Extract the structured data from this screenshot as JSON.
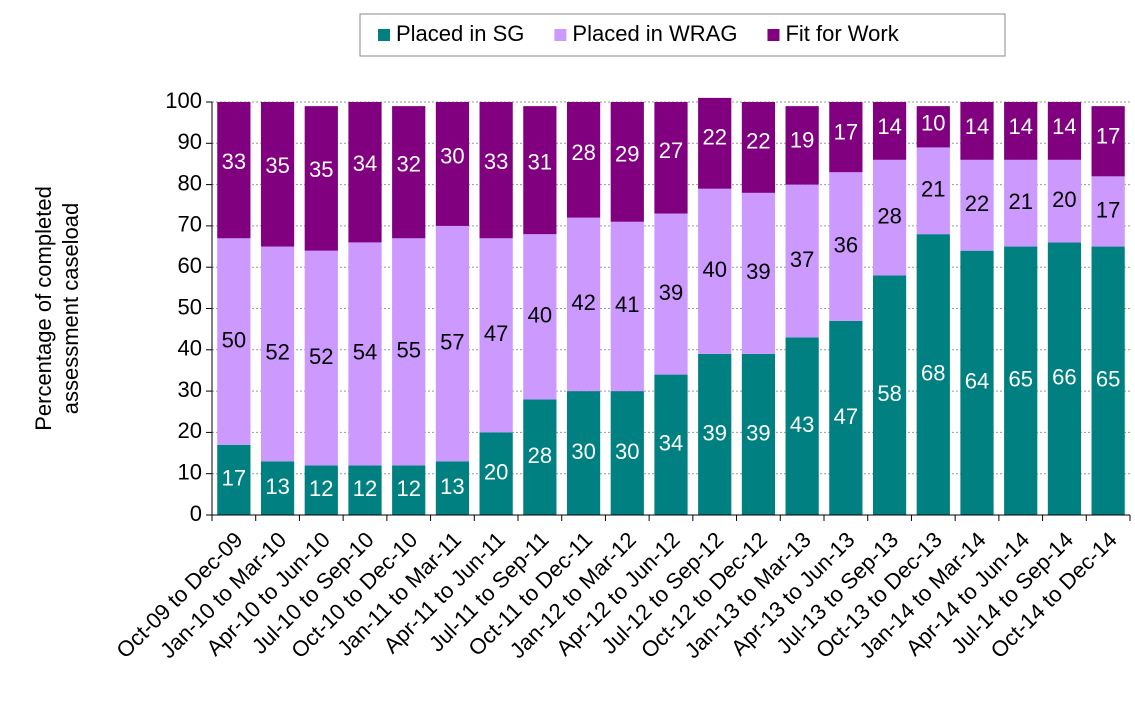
{
  "chart_data": {
    "type": "stacked_bar",
    "ylabel_lines": [
      "Percentage of completed",
      "assessment caseload"
    ],
    "categories": [
      "Oct-09 to Dec-09",
      "Jan-10 to Mar-10",
      "Apr-10 to Jun-10",
      "Jul-10 to Sep-10",
      "Oct-10 to Dec-10",
      "Jan-11 to Mar-11",
      "Apr-11 to Jun-11",
      "Jul-11 to Sep-11",
      "Oct-11 to Dec-11",
      "Jan-12 to Mar-12",
      "Apr-12 to Jun-12",
      "Jul-12 to Sep-12",
      "Oct-12 to Dec-12",
      "Jan-13 to Mar-13",
      "Apr-13 to Jun-13",
      "Jul-13 to Sep-13",
      "Oct-13 to Dec-13",
      "Jan-14 to Mar-14",
      "Apr-14 to Jun-14",
      "Jul-14 to Sep-14",
      "Oct-14 to Dec-14"
    ],
    "series": [
      {
        "name": "Placed in SG",
        "color": "#008080",
        "label_color": "#ffffff",
        "values": [
          17,
          13,
          12,
          12,
          12,
          13,
          20,
          28,
          30,
          30,
          34,
          39,
          39,
          43,
          47,
          58,
          68,
          64,
          65,
          66,
          65
        ]
      },
      {
        "name": "Placed in WRAG",
        "color": "#cc99ff",
        "label_color": "#000000",
        "values": [
          50,
          52,
          52,
          54,
          55,
          57,
          47,
          40,
          42,
          41,
          39,
          40,
          39,
          37,
          36,
          28,
          21,
          22,
          21,
          20,
          17
        ]
      },
      {
        "name": "Fit for Work",
        "color": "#800080",
        "label_color": "#ffffff",
        "values": [
          33,
          35,
          35,
          34,
          32,
          30,
          33,
          31,
          28,
          29,
          27,
          22,
          22,
          19,
          17,
          14,
          10,
          14,
          14,
          14,
          17
        ]
      }
    ],
    "ylim": [
      0,
      100
    ],
    "yticks": [
      0,
      10,
      20,
      30,
      40,
      50,
      60,
      70,
      80,
      90,
      100
    ],
    "grid": true,
    "legend": "top"
  }
}
